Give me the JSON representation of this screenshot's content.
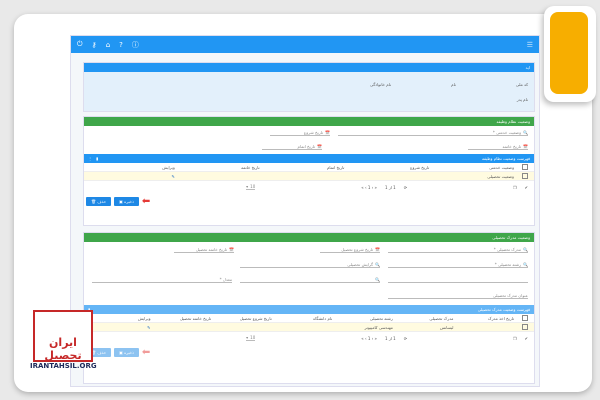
{
  "toolbar": {
    "icons": [
      "power-icon",
      "key-icon",
      "home-icon",
      "help-icon",
      "info-icon"
    ],
    "menu_icon": "hamburger-icon"
  },
  "accent": {
    "orange": "#f7ae00",
    "blue": "#2196f3",
    "green": "#3fa64a"
  },
  "info": {
    "title": "اید",
    "national_code_label": "کد ملی",
    "name_label": "نام",
    "family_label": "نام خانوادگی",
    "father_label": "نام پدر"
  },
  "military": {
    "title": "وضعیت نظام وظیفه",
    "status_placeholder": "وضعیت خدمتی *",
    "start_label": "تاریخ شروع",
    "end_label": "تاریخ اتمام",
    "issue_label": "تاریخ خاتمه",
    "list_title": "فهرست وضعیت نظام وظیفه",
    "columns": [
      "وضعیت خدمتی",
      "تاریخ شروع",
      "تاریخ اتمام",
      "تاریخ خاتمه",
      "ویرایش"
    ],
    "rows": [
      [
        "وضعیت تحصیلی",
        "",
        "",
        "",
        ""
      ]
    ],
    "pager": "1 از 1",
    "page_size": "10"
  },
  "education": {
    "title": "وضعیت مدرک تحصیلی",
    "degree_placeholder": "مدرک تحصیلی *",
    "field_placeholder": "رشته تحصیلی *",
    "university_placeholder": "گرایش تحصیلی",
    "start_label": "تاریخ شروع تحصیل",
    "end_label": "تاریخ خاتمه تحصیل",
    "gpa_placeholder": "معدل *",
    "extra_label": "عنوان مدرک تحصیلی",
    "list_title": "فهرست وضعیت مدرک تحصیلی",
    "columns": [
      "تاریخ اخذ مدرک",
      "مدرک تحصیلی",
      "رشته تحصیلی",
      "نام دانشگاه",
      "تاریخ شروع تحصیل",
      "تاریخ خاتمه تحصیل",
      "ویرایش"
    ],
    "rows": [
      [
        "",
        "لیسانس",
        "مهندسی کامپیوتر",
        "",
        "",
        "",
        ""
      ]
    ],
    "pager": "1 از 1",
    "page_size": "10"
  },
  "buttons": {
    "save": "ذخیره",
    "delete": "حذف"
  },
  "logo": {
    "text": "ایران تحصیل",
    "url": "IRANTAHSIL.ORG"
  }
}
